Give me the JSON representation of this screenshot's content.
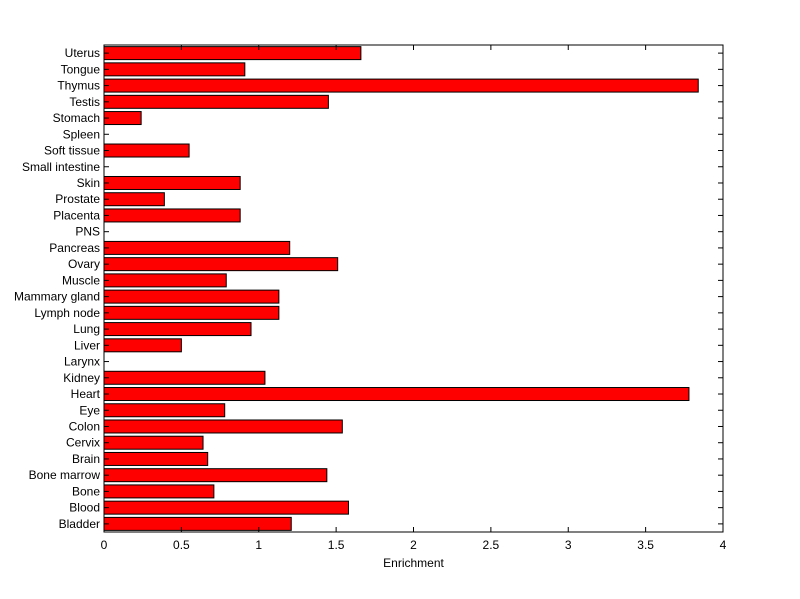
{
  "chart_data": {
    "type": "bar",
    "orientation": "horizontal",
    "categories": [
      "Bladder",
      "Blood",
      "Bone",
      "Bone marrow",
      "Brain",
      "Cervix",
      "Colon",
      "Eye",
      "Heart",
      "Kidney",
      "Larynx",
      "Liver",
      "Lung",
      "Lymph node",
      "Mammary gland",
      "Muscle",
      "Ovary",
      "Pancreas",
      "PNS",
      "Placenta",
      "Prostate",
      "Skin",
      "Small intestine",
      "Soft tissue",
      "Spleen",
      "Stomach",
      "Testis",
      "Thymus",
      "Tongue",
      "Uterus"
    ],
    "values": [
      1.21,
      1.58,
      0.71,
      1.44,
      0.67,
      0.64,
      1.54,
      0.78,
      3.78,
      1.04,
      0,
      0.5,
      0.95,
      1.13,
      1.13,
      0.79,
      1.51,
      1.2,
      0,
      0.88,
      0.39,
      0.88,
      0,
      0.55,
      0,
      0.24,
      1.45,
      3.84,
      0.91,
      1.66
    ],
    "xlabel": "Enrichment",
    "ylabel": "",
    "title": "",
    "xlim": [
      0,
      4
    ],
    "xticks": [
      "0",
      "0.5",
      "1",
      "1.5",
      "2",
      "2.5",
      "3",
      "3.5",
      "4"
    ],
    "grid": false,
    "bar_color": "#ff0000",
    "edge_color": "#000000"
  }
}
